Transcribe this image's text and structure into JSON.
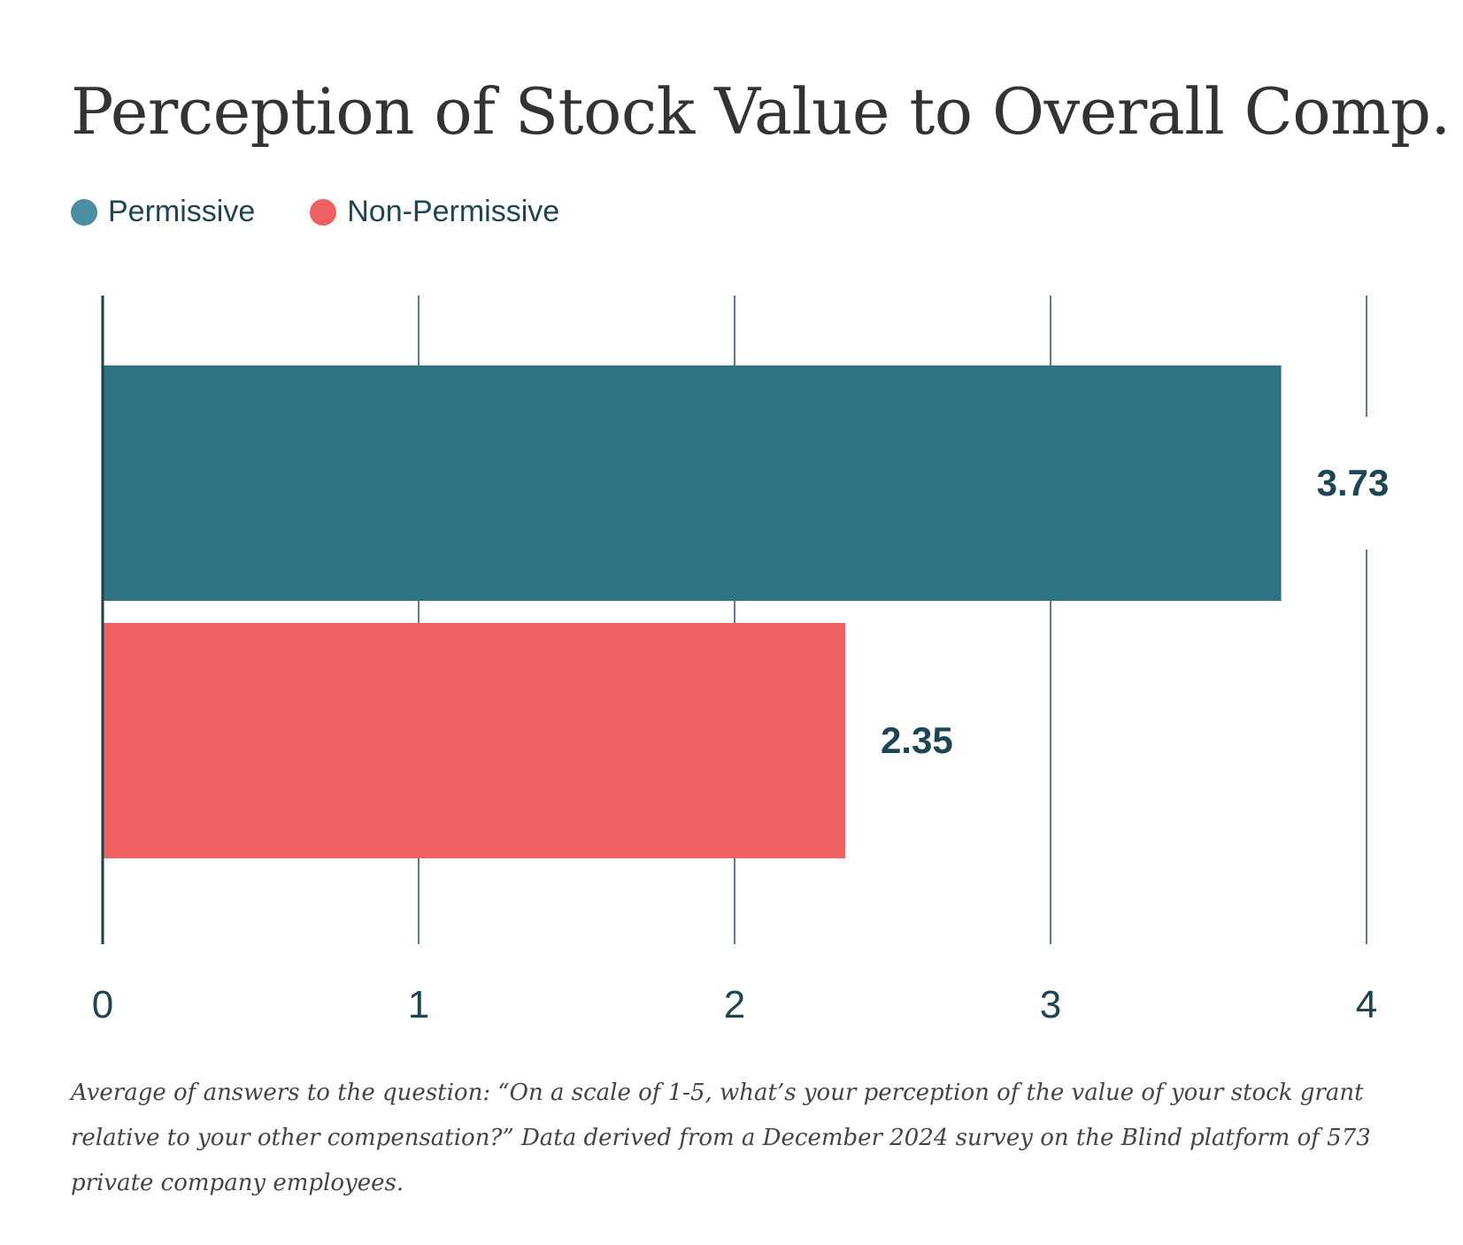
{
  "chart_data": {
    "type": "bar",
    "orientation": "horizontal",
    "title": "Perception of Stock Value to Overall Comp.",
    "series": [
      {
        "name": "Permissive",
        "value": 3.73,
        "label": "3.73",
        "color": "#2e7384",
        "legend_color": "#4a8fa1"
      },
      {
        "name": "Non-Permissive",
        "value": 2.35,
        "label": "2.35",
        "color": "#f06062",
        "legend_color": "#f06062"
      }
    ],
    "x_ticks": [
      0,
      1,
      2,
      3,
      4
    ],
    "x_tick_labels": [
      "0",
      "1",
      "2",
      "3",
      "4"
    ],
    "xlim": [
      0,
      4
    ],
    "grid": true,
    "legend_position": "top-left",
    "xlabel": "",
    "ylabel": ""
  },
  "caption": "Average of answers to the question: “On a scale of 1-5, what’s your perception of the value of your stock grant relative to your other compensation?” Data derived from a December 2024 survey on the Blind platform of 573 private company employees.",
  "colors": {
    "text_dark": "#1e4553",
    "gridline": "#2d4f5c",
    "axis": "#1f3f4c"
  }
}
